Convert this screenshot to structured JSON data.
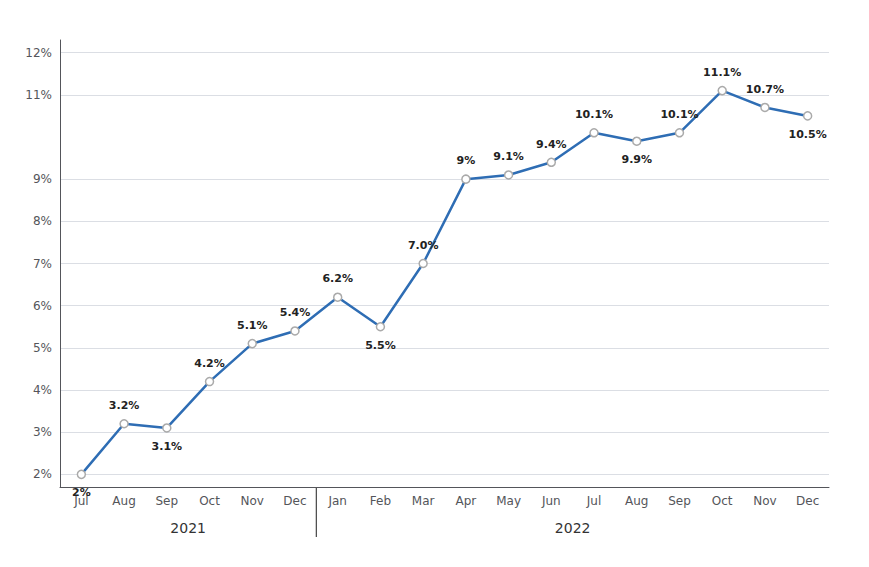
{
  "chart_data": {
    "type": "line",
    "categories": [
      "Jul",
      "Aug",
      "Sep",
      "Oct",
      "Nov",
      "Dec",
      "Jan",
      "Feb",
      "Mar",
      "Apr",
      "May",
      "Jun",
      "Jul",
      "Aug",
      "Sep",
      "Oct",
      "Nov",
      "Dec"
    ],
    "values": [
      2.0,
      3.2,
      3.1,
      4.2,
      5.1,
      5.4,
      6.2,
      5.5,
      7.0,
      9.0,
      9.1,
      9.4,
      10.1,
      9.9,
      10.1,
      11.1,
      10.7,
      10.5
    ],
    "value_labels": [
      "2%",
      "3.2%",
      "3.1%",
      "4.2%",
      "5.1%",
      "5.4%",
      "6.2%",
      "5.5%",
      "7.0%",
      "9%",
      "9.1%",
      "9.4%",
      "10.1%",
      "9.9%",
      "10.1%",
      "11.1%",
      "10.7%",
      "10.5%"
    ],
    "data_labels": true,
    "color": "#2E6DB4",
    "marker": "circle",
    "ylim": [
      1.7,
      12.3
    ],
    "yticks": [
      {
        "value": 2,
        "label": "2%"
      },
      {
        "value": 3,
        "label": "3%"
      },
      {
        "value": 4,
        "label": "4%"
      },
      {
        "value": 5,
        "label": "5%"
      },
      {
        "value": 6,
        "label": "6%"
      },
      {
        "value": 7,
        "label": "7%"
      },
      {
        "value": 8,
        "label": "8%"
      },
      {
        "value": 9,
        "label": "9%"
      },
      {
        "value": 11,
        "label": "11%"
      },
      {
        "value": 12,
        "label": "12%"
      }
    ],
    "grid": true,
    "annotations": [
      "2021",
      "2022"
    ]
  }
}
